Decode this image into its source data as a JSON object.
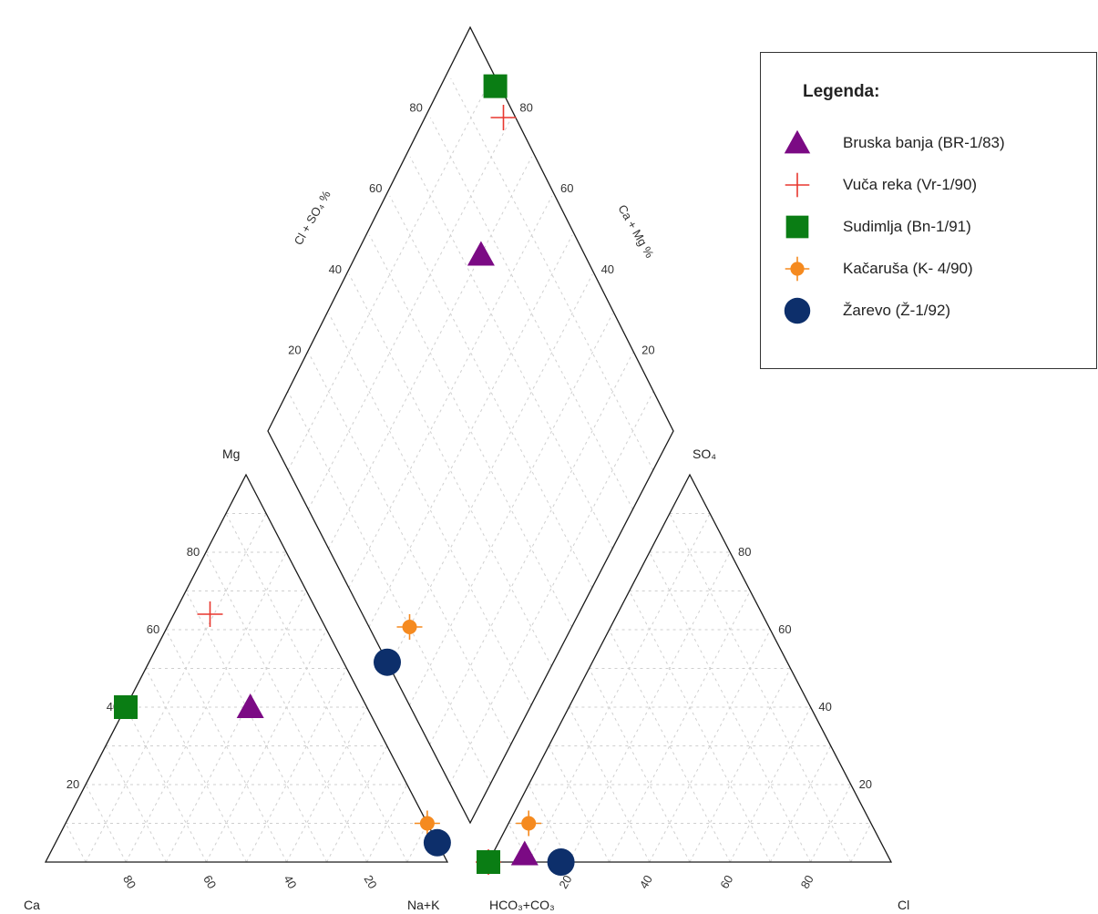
{
  "chart_data": {
    "type": "scatter",
    "subtype": "piper-diagram",
    "corner_labels": {
      "mg": "Mg",
      "ca": "Ca",
      "nak": "Na+K",
      "hco3": "HCO₃+CO₃",
      "cl": "Cl",
      "so4": "SO₄"
    },
    "axis_titles": {
      "diamond_left": "Cl + SO₄ %",
      "diamond_right": "Ca + Mg %"
    },
    "ticks": [
      "20",
      "40",
      "60",
      "80"
    ],
    "legend": {
      "title": "Legenda:",
      "placement": "top-right"
    },
    "series": [
      {
        "name": "Bruska banja (BR-1/83)",
        "symbol": "triangle",
        "color": "#7b0a84",
        "cation": {
          "ca": 29,
          "mg": 40,
          "nak": 31
        },
        "anion": {
          "hco3": 90,
          "so4": 2,
          "cl": 8
        },
        "diamond": {
          "cl_so4": 70,
          "ca_mg": 75
        }
      },
      {
        "name": "Vuča reka (Vr-1/90)",
        "symbol": "cross",
        "color": "#e8372f",
        "cation": {
          "ca": 27,
          "mg": 64,
          "nak": 9
        },
        "anion": {
          "hco3": 100,
          "so4": 0,
          "cl": 0
        },
        "diamond": {
          "cl_so4": 82,
          "ca_mg": 98
        }
      },
      {
        "name": "Sudimlja (Bn-1/91)",
        "symbol": "square",
        "color": "#0a7d14",
        "cation": {
          "ca": 60,
          "mg": 40,
          "nak": 0
        },
        "anion": {
          "hco3": 100,
          "so4": 0,
          "cl": 0
        },
        "diamond": {
          "cl_so4": 88,
          "ca_mg": 100
        }
      },
      {
        "name": "Kačaruša (K- 4/90)",
        "symbol": "cross-dot",
        "color": "#f58a1f",
        "cation": {
          "ca": 0,
          "mg": 10,
          "nak": 90
        },
        "anion": {
          "hco3": 85,
          "so4": 10,
          "cl": 5
        },
        "diamond": {
          "cl_so4": 40,
          "ca_mg": 10
        }
      },
      {
        "name": "Žarevo (Ž-1/92)",
        "symbol": "circle",
        "color": "#0d2f6b",
        "cation": {
          "ca": 0,
          "mg": 5,
          "nak": 95
        },
        "anion": {
          "hco3": 82,
          "so4": 0,
          "cl": 18
        },
        "diamond": {
          "cl_so4": 41,
          "ca_mg": 0
        }
      }
    ]
  }
}
